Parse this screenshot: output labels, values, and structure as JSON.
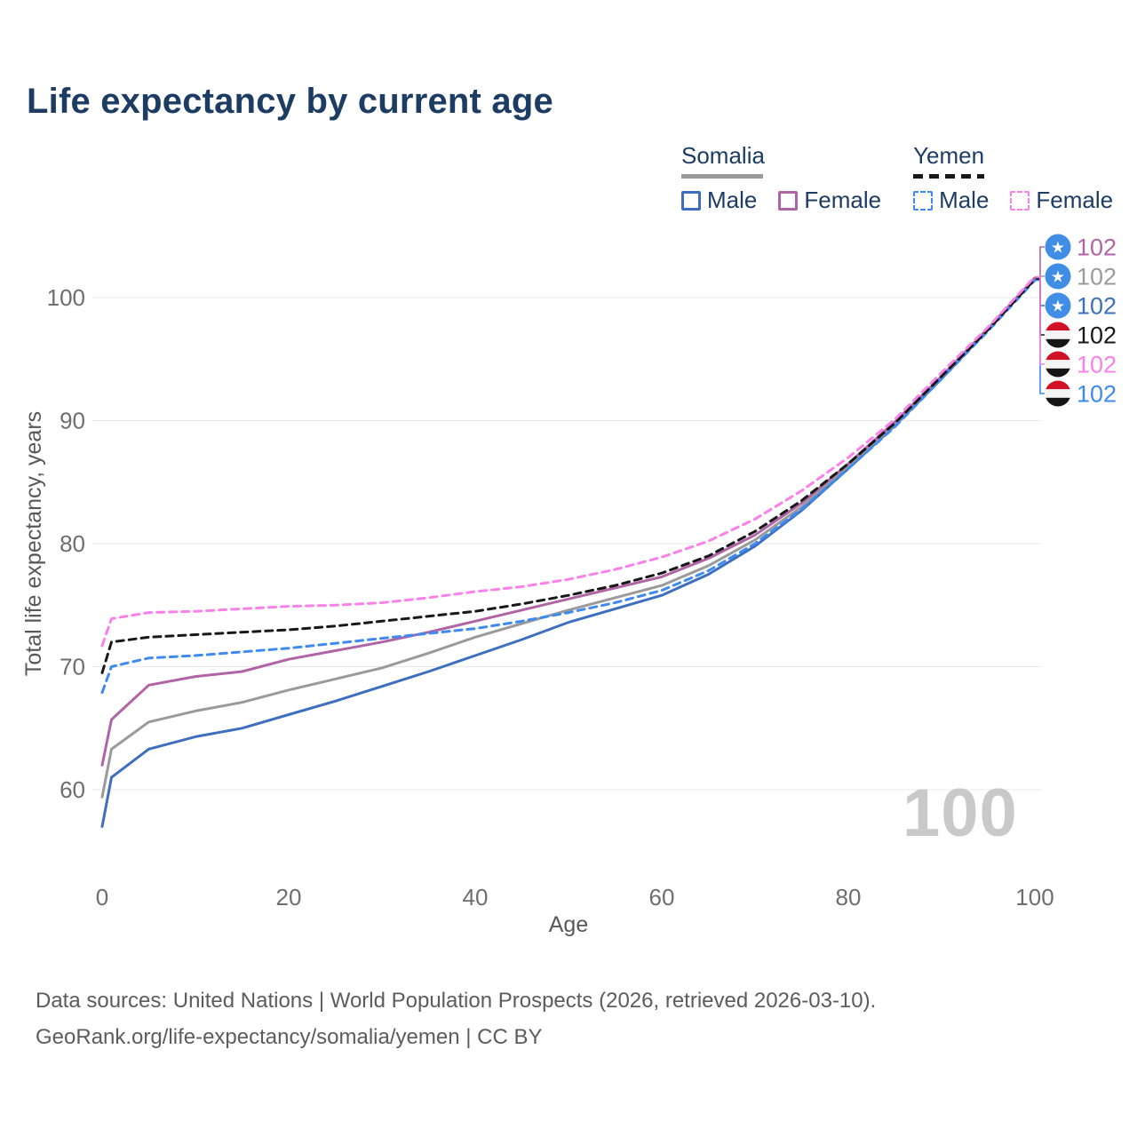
{
  "title": "Life expectancy by current age",
  "watermark": "100",
  "colors": {
    "title_navy": "#1d3c63",
    "grid": "#e9e9e9",
    "tick_text": "#6e6e6e",
    "watermark_gray": "#c9c9c9",
    "somalia_male": "#3e6fbe",
    "somalia_female": "#b164a5",
    "somalia_all": "#9a9a9a",
    "yemen_male": "#3f8af0",
    "yemen_female": "#fb80ea",
    "yemen_all": "#181818",
    "somalia_flag_blue": "#3f8de4",
    "yemen_flag_red": "#d01126"
  },
  "legend": {
    "groups": [
      {
        "country": "Somalia",
        "underline_style": "solid",
        "underline_color": "#9a9a9a",
        "items": [
          {
            "label": "Male",
            "color": "#3e6fbe",
            "dashed": false
          },
          {
            "label": "Female",
            "color": "#b164a5",
            "dashed": false
          }
        ]
      },
      {
        "country": "Yemen",
        "underline_style": "dashed",
        "underline_color": "#181818",
        "items": [
          {
            "label": "Male",
            "color": "#3f8af0",
            "dashed": true
          },
          {
            "label": "Female",
            "color": "#fb80ea",
            "dashed": true
          }
        ]
      }
    ]
  },
  "chart_data": {
    "type": "line",
    "title": "Life expectancy by current age",
    "xlabel": "Age",
    "ylabel": "Total life expectancy, years",
    "xlim": [
      0,
      100
    ],
    "ylim": [
      56,
      103
    ],
    "x_ticks": [
      0,
      20,
      40,
      60,
      80,
      100
    ],
    "y_ticks": [
      60,
      70,
      80,
      90,
      100
    ],
    "grid": "horizontal-only",
    "legend_position": "top-right",
    "watermark_current_age": "100",
    "x": [
      0,
      1,
      5,
      10,
      15,
      20,
      25,
      30,
      35,
      40,
      45,
      50,
      55,
      60,
      65,
      70,
      75,
      80,
      85,
      90,
      95,
      100
    ],
    "series": [
      {
        "id": "somalia-male",
        "name": "Somalia Male",
        "country": "Somalia",
        "sex": "male",
        "color": "#3e6fbe",
        "dashed": false,
        "flag": "somalia",
        "slot": 2,
        "end_label": "102",
        "values": [
          57.0,
          61.0,
          63.3,
          64.3,
          65.0,
          66.1,
          67.2,
          68.4,
          69.6,
          70.9,
          72.2,
          73.6,
          74.7,
          75.8,
          77.5,
          79.8,
          82.7,
          86.1,
          89.6,
          93.4,
          97.4,
          101.5
        ]
      },
      {
        "id": "somalia-all",
        "name": "Somalia Both sexes",
        "country": "Somalia",
        "sex": "all",
        "color": "#9a9a9a",
        "dashed": false,
        "flag": "somalia",
        "slot": 1,
        "end_label": "102",
        "values": [
          59.4,
          63.3,
          65.5,
          66.4,
          67.1,
          68.1,
          69.0,
          69.9,
          71.1,
          72.4,
          73.5,
          74.6,
          75.6,
          76.6,
          78.2,
          80.3,
          83.0,
          86.3,
          89.7,
          93.5,
          97.4,
          101.5
        ]
      },
      {
        "id": "somalia-female",
        "name": "Somalia Female",
        "country": "Somalia",
        "sex": "female",
        "color": "#b164a5",
        "dashed": false,
        "flag": "somalia",
        "slot": 0,
        "end_label": "102",
        "values": [
          62.0,
          65.7,
          68.5,
          69.2,
          69.6,
          70.6,
          71.3,
          72.0,
          72.8,
          73.7,
          74.6,
          75.5,
          76.4,
          77.3,
          78.8,
          80.7,
          83.3,
          86.5,
          89.9,
          93.6,
          97.5,
          101.6
        ]
      },
      {
        "id": "yemen-male",
        "name": "Yemen Male",
        "country": "Yemen",
        "sex": "male",
        "color": "#3f8af0",
        "dashed": true,
        "flag": "yemen",
        "slot": 5,
        "end_label": "102",
        "values": [
          67.9,
          70.0,
          70.7,
          70.9,
          71.2,
          71.5,
          71.9,
          72.3,
          72.7,
          73.1,
          73.7,
          74.4,
          75.2,
          76.2,
          77.8,
          80.0,
          82.8,
          86.1,
          89.5,
          93.4,
          97.3,
          101.4
        ]
      },
      {
        "id": "yemen-all",
        "name": "Yemen Both sexes",
        "country": "Yemen",
        "sex": "all",
        "color": "#181818",
        "dashed": true,
        "flag": "yemen",
        "slot": 3,
        "end_label": "102",
        "values": [
          69.5,
          72.0,
          72.4,
          72.6,
          72.8,
          73.0,
          73.3,
          73.7,
          74.1,
          74.5,
          75.1,
          75.8,
          76.6,
          77.6,
          79.0,
          81.0,
          83.5,
          86.5,
          89.8,
          93.6,
          97.4,
          101.5
        ]
      },
      {
        "id": "yemen-female",
        "name": "Yemen Female",
        "country": "Yemen",
        "sex": "female",
        "color": "#fb80ea",
        "dashed": true,
        "flag": "yemen",
        "slot": 4,
        "end_label": "102",
        "values": [
          71.7,
          73.9,
          74.4,
          74.5,
          74.7,
          74.9,
          75.0,
          75.2,
          75.6,
          76.1,
          76.5,
          77.1,
          77.9,
          78.9,
          80.2,
          82.0,
          84.3,
          87.0,
          90.1,
          93.9,
          97.6,
          101.7
        ]
      }
    ]
  },
  "footer": {
    "line1": "Data sources: United Nations | World Population Prospects (2026, retrieved 2026-03-10).",
    "line2": "GeoRank.org/life-expectancy/somalia/yemen | CC BY"
  }
}
